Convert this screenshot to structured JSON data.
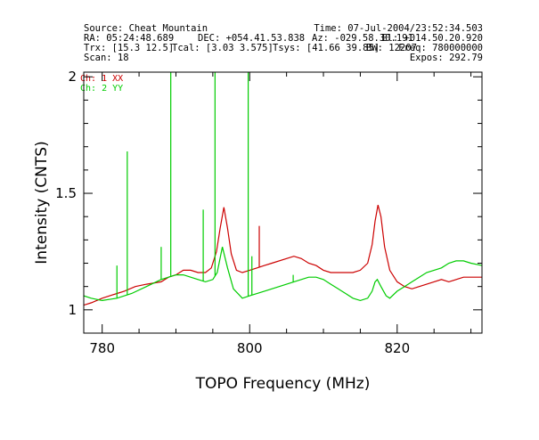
{
  "header": {
    "source": "Source: Cheat Mountain",
    "time": "Time: 07-Jul-2004/23:52:34.503",
    "ra": "RA: 05:24:48.689",
    "dec": "DEC: +054.41.53.838",
    "az": "Az: -029.58.30.191",
    "el": "El: +014.50.20.920",
    "trx": "Trx: [15.3 12.5]",
    "tcal": "Tcal: [3.03 3.575]",
    "tsys": "Tsys: [41.66 39.85]",
    "bw": "BW: 12207",
    "freq": "Freq: 780000000",
    "scan": "Scan: 18",
    "expos": "Expos: 292.79"
  },
  "chart_data": {
    "type": "line",
    "xlabel": "TOPO Frequency (MHz)",
    "ylabel": "Intensity (CNTS)",
    "xlim": [
      777.5,
      831.5
    ],
    "ylim": [
      0.9,
      2.02
    ],
    "x_ticks": [
      780,
      800,
      820
    ],
    "y_ticks": [
      1,
      1.5,
      2
    ],
    "legend_position": "top-left",
    "series": [
      {
        "name": "Ch: 1 XX",
        "color": "#cc0000",
        "points": [
          [
            777.5,
            1.02
          ],
          [
            778.5,
            1.03
          ],
          [
            780,
            1.05
          ],
          [
            782,
            1.07
          ],
          [
            783,
            1.08
          ],
          [
            784.5,
            1.1
          ],
          [
            786,
            1.11
          ],
          [
            788,
            1.12
          ],
          [
            789,
            1.14
          ],
          [
            790,
            1.15
          ],
          [
            791,
            1.17
          ],
          [
            792,
            1.17
          ],
          [
            793,
            1.16
          ],
          [
            794,
            1.16
          ],
          [
            794.8,
            1.18
          ],
          [
            795.5,
            1.25
          ],
          [
            796,
            1.35
          ],
          [
            796.5,
            1.44
          ],
          [
            797,
            1.35
          ],
          [
            797.5,
            1.24
          ],
          [
            798.2,
            1.17
          ],
          [
            799,
            1.16
          ],
          [
            800,
            1.17
          ],
          [
            801,
            1.18
          ],
          [
            802,
            1.19
          ],
          [
            803,
            1.2
          ],
          [
            805,
            1.22
          ],
          [
            806,
            1.23
          ],
          [
            807,
            1.22
          ],
          [
            808,
            1.2
          ],
          [
            809,
            1.19
          ],
          [
            810,
            1.17
          ],
          [
            811,
            1.16
          ],
          [
            812,
            1.16
          ],
          [
            813,
            1.16
          ],
          [
            814,
            1.16
          ],
          [
            815,
            1.17
          ],
          [
            816,
            1.2
          ],
          [
            816.6,
            1.28
          ],
          [
            817,
            1.38
          ],
          [
            817.4,
            1.45
          ],
          [
            817.8,
            1.4
          ],
          [
            818.3,
            1.27
          ],
          [
            819,
            1.17
          ],
          [
            820,
            1.12
          ],
          [
            821,
            1.1
          ],
          [
            822,
            1.09
          ],
          [
            823,
            1.1
          ],
          [
            824,
            1.11
          ],
          [
            825,
            1.12
          ],
          [
            826,
            1.13
          ],
          [
            827,
            1.12
          ],
          [
            828,
            1.13
          ],
          [
            829,
            1.14
          ],
          [
            830,
            1.14
          ],
          [
            831.5,
            1.14
          ]
        ],
        "spikes": [
          [
            801.3,
            1.36
          ]
        ]
      },
      {
        "name": "Ch: 2 YY",
        "color": "#00cc00",
        "points": [
          [
            777.5,
            1.06
          ],
          [
            778.5,
            1.05
          ],
          [
            780,
            1.04
          ],
          [
            782,
            1.05
          ],
          [
            784,
            1.07
          ],
          [
            786,
            1.1
          ],
          [
            788,
            1.13
          ],
          [
            790,
            1.15
          ],
          [
            791,
            1.15
          ],
          [
            792,
            1.14
          ],
          [
            793,
            1.13
          ],
          [
            794,
            1.12
          ],
          [
            795,
            1.13
          ],
          [
            795.6,
            1.16
          ],
          [
            796.3,
            1.27
          ],
          [
            797,
            1.18
          ],
          [
            797.8,
            1.09
          ],
          [
            799,
            1.05
          ],
          [
            800,
            1.06
          ],
          [
            802,
            1.08
          ],
          [
            804,
            1.1
          ],
          [
            806,
            1.12
          ],
          [
            808,
            1.14
          ],
          [
            809,
            1.14
          ],
          [
            810,
            1.13
          ],
          [
            811,
            1.11
          ],
          [
            812,
            1.09
          ],
          [
            813,
            1.07
          ],
          [
            814,
            1.05
          ],
          [
            815,
            1.04
          ],
          [
            816,
            1.05
          ],
          [
            816.6,
            1.08
          ],
          [
            817,
            1.12
          ],
          [
            817.3,
            1.13
          ],
          [
            817.8,
            1.1
          ],
          [
            818.5,
            1.06
          ],
          [
            819,
            1.05
          ],
          [
            820,
            1.08
          ],
          [
            821,
            1.1
          ],
          [
            822,
            1.12
          ],
          [
            823,
            1.14
          ],
          [
            824,
            1.16
          ],
          [
            825,
            1.17
          ],
          [
            826,
            1.18
          ],
          [
            827,
            1.2
          ],
          [
            828,
            1.21
          ],
          [
            829,
            1.21
          ],
          [
            830,
            1.2
          ],
          [
            831.5,
            1.19
          ]
        ],
        "spikes": [
          [
            782,
            1.19
          ],
          [
            783.4,
            1.68
          ],
          [
            788,
            1.27
          ],
          [
            789.3,
            2.02
          ],
          [
            793.7,
            1.43
          ],
          [
            795.3,
            2.02
          ],
          [
            799.8,
            2.02
          ],
          [
            800.3,
            1.23
          ],
          [
            805.9,
            1.15
          ]
        ]
      }
    ]
  }
}
